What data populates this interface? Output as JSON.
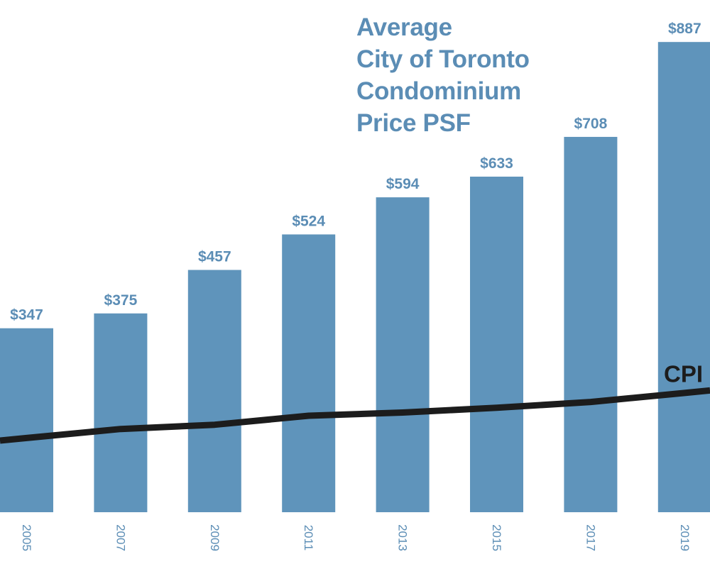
{
  "chart_data": {
    "type": "bar",
    "title_lines": [
      "Average",
      "City of Toronto",
      "Condominium",
      "Price PSF"
    ],
    "categories": [
      "2005",
      "2007",
      "2009",
      "2011",
      "2013",
      "2015",
      "2017",
      "2019"
    ],
    "values": [
      347,
      375,
      457,
      524,
      594,
      633,
      708,
      887
    ],
    "value_labels": [
      "$347",
      "$375",
      "$457",
      "$524",
      "$594",
      "$633",
      "$708",
      "$887"
    ],
    "ylim": [
      0,
      910
    ],
    "grid": false,
    "line_series": {
      "name": "CPI",
      "values": [
        140,
        157,
        165,
        182,
        188,
        197,
        208,
        225
      ]
    },
    "colors": {
      "bars": "#5f94bb",
      "labels": "#5b8db5",
      "line": "#1c1c1c"
    }
  }
}
